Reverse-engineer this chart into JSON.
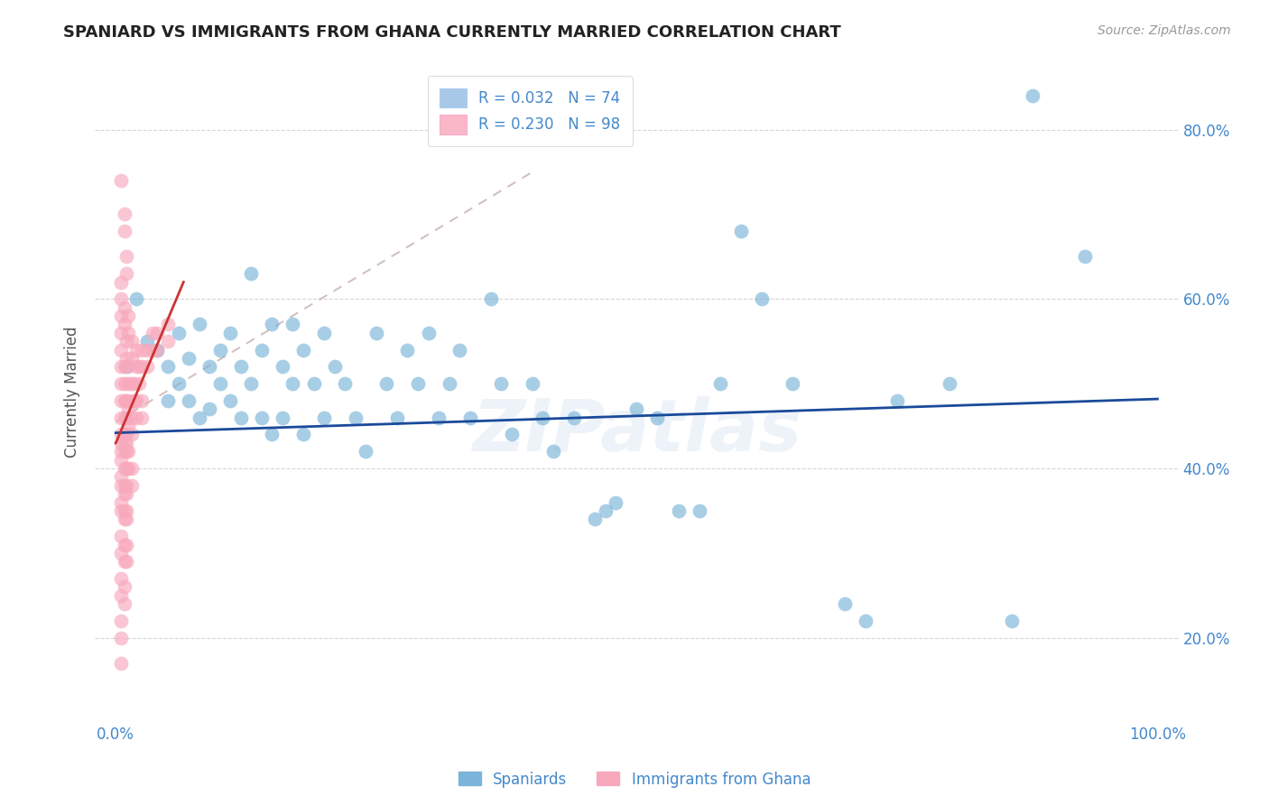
{
  "title": "SPANIARD VS IMMIGRANTS FROM GHANA CURRENTLY MARRIED CORRELATION CHART",
  "source_text": "Source: ZipAtlas.com",
  "ylabel": "Currently Married",
  "ytick_labels": [
    "20.0%",
    "40.0%",
    "60.0%",
    "80.0%"
  ],
  "ytick_values": [
    0.2,
    0.4,
    0.6,
    0.8
  ],
  "xlim": [
    -0.02,
    1.02
  ],
  "ylim": [
    0.1,
    0.88
  ],
  "legend_r1": "R = 0.032   N = 74",
  "legend_r2": "R = 0.230   N = 98",
  "legend_color1": "#a8c8e8",
  "legend_color2": "#f8b8c8",
  "watermark": "ZIPatlas",
  "blue_scatter_color": "#7ab4d8",
  "pink_scatter_color": "#f8a8bc",
  "blue_line_color": "#1a4a9a",
  "pink_line_color": "#cc3333",
  "dashed_line_color": "#ccbbbb",
  "background_color": "#ffffff",
  "grid_color": "#cccccc",
  "title_color": "#222222",
  "axis_label_color": "#4488cc",
  "blue_trend_x": [
    0.0,
    1.0
  ],
  "blue_trend_y": [
    0.442,
    0.482
  ],
  "pink_trend_x": [
    0.0,
    0.065
  ],
  "pink_trend_y": [
    0.43,
    0.62
  ],
  "dashed_trend_x": [
    0.0,
    0.4
  ],
  "dashed_trend_y": [
    0.455,
    0.75
  ],
  "blue_points": [
    [
      0.01,
      0.52
    ],
    [
      0.02,
      0.6
    ],
    [
      0.03,
      0.55
    ],
    [
      0.04,
      0.54
    ],
    [
      0.05,
      0.52
    ],
    [
      0.05,
      0.48
    ],
    [
      0.06,
      0.56
    ],
    [
      0.06,
      0.5
    ],
    [
      0.07,
      0.53
    ],
    [
      0.07,
      0.48
    ],
    [
      0.08,
      0.57
    ],
    [
      0.08,
      0.46
    ],
    [
      0.09,
      0.52
    ],
    [
      0.09,
      0.47
    ],
    [
      0.1,
      0.54
    ],
    [
      0.1,
      0.5
    ],
    [
      0.11,
      0.56
    ],
    [
      0.11,
      0.48
    ],
    [
      0.12,
      0.52
    ],
    [
      0.12,
      0.46
    ],
    [
      0.13,
      0.63
    ],
    [
      0.13,
      0.5
    ],
    [
      0.14,
      0.54
    ],
    [
      0.14,
      0.46
    ],
    [
      0.15,
      0.57
    ],
    [
      0.15,
      0.44
    ],
    [
      0.16,
      0.52
    ],
    [
      0.16,
      0.46
    ],
    [
      0.17,
      0.57
    ],
    [
      0.17,
      0.5
    ],
    [
      0.18,
      0.54
    ],
    [
      0.18,
      0.44
    ],
    [
      0.19,
      0.5
    ],
    [
      0.2,
      0.56
    ],
    [
      0.2,
      0.46
    ],
    [
      0.21,
      0.52
    ],
    [
      0.22,
      0.5
    ],
    [
      0.23,
      0.46
    ],
    [
      0.24,
      0.42
    ],
    [
      0.25,
      0.56
    ],
    [
      0.26,
      0.5
    ],
    [
      0.27,
      0.46
    ],
    [
      0.28,
      0.54
    ],
    [
      0.29,
      0.5
    ],
    [
      0.3,
      0.56
    ],
    [
      0.31,
      0.46
    ],
    [
      0.32,
      0.5
    ],
    [
      0.33,
      0.54
    ],
    [
      0.34,
      0.46
    ],
    [
      0.36,
      0.6
    ],
    [
      0.37,
      0.5
    ],
    [
      0.38,
      0.44
    ],
    [
      0.4,
      0.5
    ],
    [
      0.41,
      0.46
    ],
    [
      0.42,
      0.42
    ],
    [
      0.44,
      0.46
    ],
    [
      0.46,
      0.34
    ],
    [
      0.47,
      0.35
    ],
    [
      0.48,
      0.36
    ],
    [
      0.5,
      0.47
    ],
    [
      0.52,
      0.46
    ],
    [
      0.54,
      0.35
    ],
    [
      0.56,
      0.35
    ],
    [
      0.58,
      0.5
    ],
    [
      0.6,
      0.68
    ],
    [
      0.62,
      0.6
    ],
    [
      0.65,
      0.5
    ],
    [
      0.7,
      0.24
    ],
    [
      0.72,
      0.22
    ],
    [
      0.75,
      0.48
    ],
    [
      0.8,
      0.5
    ],
    [
      0.86,
      0.22
    ],
    [
      0.88,
      0.84
    ],
    [
      0.93,
      0.65
    ]
  ],
  "pink_points": [
    [
      0.005,
      0.74
    ],
    [
      0.008,
      0.7
    ],
    [
      0.008,
      0.68
    ],
    [
      0.01,
      0.65
    ],
    [
      0.01,
      0.63
    ],
    [
      0.005,
      0.62
    ],
    [
      0.005,
      0.6
    ],
    [
      0.008,
      0.59
    ],
    [
      0.008,
      0.57
    ],
    [
      0.005,
      0.58
    ],
    [
      0.012,
      0.58
    ],
    [
      0.012,
      0.56
    ],
    [
      0.01,
      0.55
    ],
    [
      0.01,
      0.53
    ],
    [
      0.005,
      0.56
    ],
    [
      0.005,
      0.54
    ],
    [
      0.015,
      0.55
    ],
    [
      0.015,
      0.53
    ],
    [
      0.008,
      0.52
    ],
    [
      0.008,
      0.5
    ],
    [
      0.005,
      0.52
    ],
    [
      0.005,
      0.5
    ],
    [
      0.012,
      0.52
    ],
    [
      0.012,
      0.5
    ],
    [
      0.02,
      0.54
    ],
    [
      0.02,
      0.52
    ],
    [
      0.005,
      0.48
    ],
    [
      0.005,
      0.46
    ],
    [
      0.008,
      0.48
    ],
    [
      0.008,
      0.46
    ],
    [
      0.01,
      0.48
    ],
    [
      0.01,
      0.46
    ],
    [
      0.015,
      0.5
    ],
    [
      0.015,
      0.48
    ],
    [
      0.025,
      0.54
    ],
    [
      0.025,
      0.52
    ],
    [
      0.005,
      0.44
    ],
    [
      0.005,
      0.43
    ],
    [
      0.008,
      0.44
    ],
    [
      0.008,
      0.43
    ],
    [
      0.01,
      0.44
    ],
    [
      0.01,
      0.43
    ],
    [
      0.012,
      0.47
    ],
    [
      0.012,
      0.45
    ],
    [
      0.018,
      0.5
    ],
    [
      0.018,
      0.48
    ],
    [
      0.03,
      0.54
    ],
    [
      0.03,
      0.52
    ],
    [
      0.005,
      0.42
    ],
    [
      0.005,
      0.41
    ],
    [
      0.008,
      0.42
    ],
    [
      0.008,
      0.4
    ],
    [
      0.01,
      0.42
    ],
    [
      0.01,
      0.4
    ],
    [
      0.015,
      0.46
    ],
    [
      0.015,
      0.44
    ],
    [
      0.022,
      0.52
    ],
    [
      0.022,
      0.5
    ],
    [
      0.035,
      0.56
    ],
    [
      0.035,
      0.54
    ],
    [
      0.005,
      0.39
    ],
    [
      0.005,
      0.38
    ],
    [
      0.008,
      0.38
    ],
    [
      0.008,
      0.37
    ],
    [
      0.01,
      0.38
    ],
    [
      0.01,
      0.37
    ],
    [
      0.012,
      0.42
    ],
    [
      0.012,
      0.4
    ],
    [
      0.02,
      0.48
    ],
    [
      0.02,
      0.46
    ],
    [
      0.04,
      0.56
    ],
    [
      0.04,
      0.54
    ],
    [
      0.005,
      0.36
    ],
    [
      0.005,
      0.35
    ],
    [
      0.008,
      0.35
    ],
    [
      0.008,
      0.34
    ],
    [
      0.01,
      0.35
    ],
    [
      0.01,
      0.34
    ],
    [
      0.015,
      0.4
    ],
    [
      0.015,
      0.38
    ],
    [
      0.025,
      0.48
    ],
    [
      0.025,
      0.46
    ],
    [
      0.05,
      0.57
    ],
    [
      0.05,
      0.55
    ],
    [
      0.005,
      0.32
    ],
    [
      0.005,
      0.3
    ],
    [
      0.008,
      0.31
    ],
    [
      0.008,
      0.29
    ],
    [
      0.01,
      0.31
    ],
    [
      0.01,
      0.29
    ],
    [
      0.005,
      0.27
    ],
    [
      0.005,
      0.25
    ],
    [
      0.008,
      0.26
    ],
    [
      0.008,
      0.24
    ],
    [
      0.005,
      0.22
    ],
    [
      0.005,
      0.2
    ],
    [
      0.005,
      0.17
    ],
    [
      0.01,
      0.48
    ]
  ]
}
